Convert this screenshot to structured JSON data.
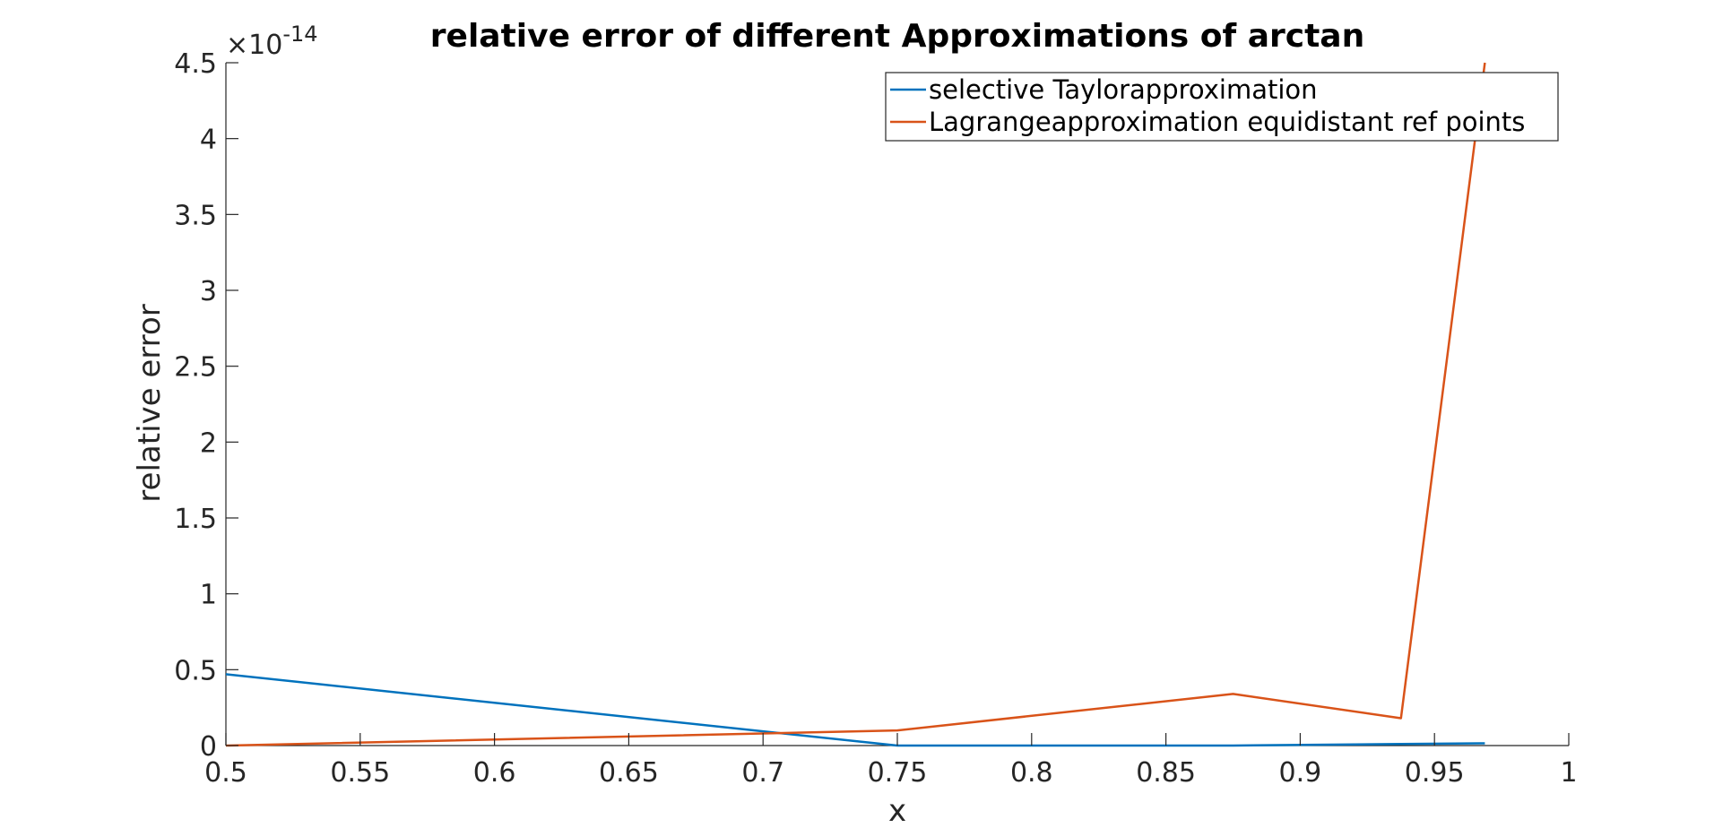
{
  "chart_data": {
    "type": "line",
    "title": "relative error of different Approximations of arctan",
    "xlabel": "x",
    "ylabel": "relative error",
    "exponent_label": {
      "base": "×10",
      "power": "-14"
    },
    "xlim": [
      0.5,
      1
    ],
    "ylim": [
      0,
      4.5
    ],
    "x_ticks": [
      0.5,
      0.55,
      0.6,
      0.65,
      0.7,
      0.75,
      0.8,
      0.85,
      0.9,
      0.95,
      1
    ],
    "x_tick_labels": [
      "0.5",
      "0.55",
      "0.6",
      "0.65",
      "0.7",
      "0.75",
      "0.8",
      "0.85",
      "0.9",
      "0.95",
      "1"
    ],
    "y_ticks": [
      0,
      0.5,
      1,
      1.5,
      2,
      2.5,
      3,
      3.5,
      4,
      4.5
    ],
    "y_tick_labels": [
      "0",
      "0.5",
      "1",
      "1.5",
      "2",
      "2.5",
      "3",
      "3.5",
      "4",
      "4.5"
    ],
    "grid": false,
    "legend_position": "top-right",
    "series": [
      {
        "name": "selective Taylorapproximation",
        "color": "#0072BD",
        "x": [
          0.5,
          0.75,
          0.875,
          0.9375,
          0.96875
        ],
        "y": [
          0.47,
          0.0,
          0.0,
          0.01,
          0.015
        ]
      },
      {
        "name": "Lagrangeapproximation equidistant ref points",
        "color": "#D95319",
        "x": [
          0.5,
          0.75,
          0.875,
          0.9375,
          0.96875
        ],
        "y": [
          0.0,
          0.1,
          0.34,
          0.18,
          4.5
        ]
      }
    ]
  }
}
